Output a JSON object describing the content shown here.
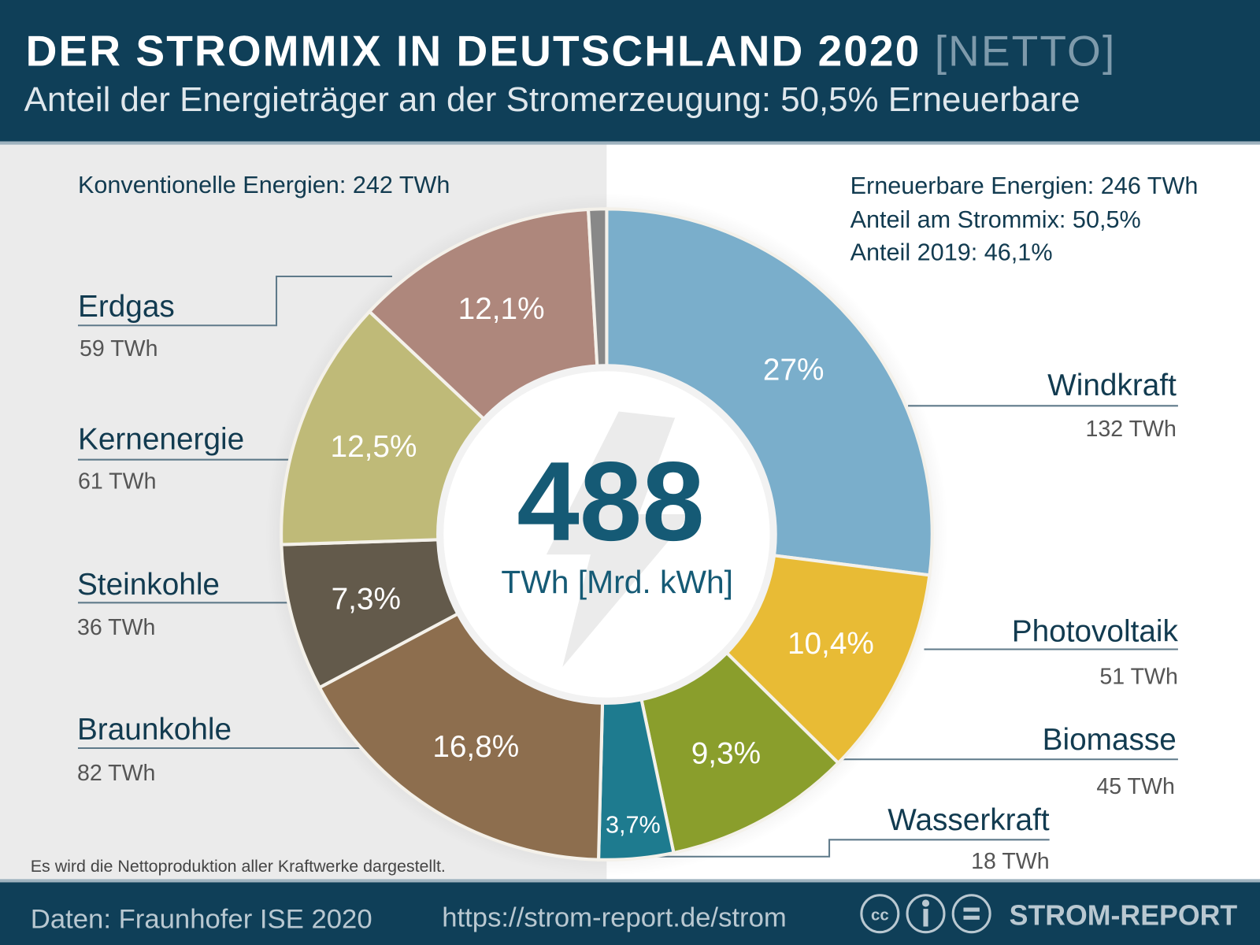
{
  "header": {
    "title": "DER STROMMIX IN DEUTSCHLAND 2020",
    "title_suffix": "[NETTO]",
    "subtitle": "Anteil der Energieträger an der Stromerzeugung: 50,5% Erneuerbare"
  },
  "summary": {
    "conventional": "Konventionelle Energien: 242 TWh",
    "renewable_lines": [
      "Erneuerbare Energien: 246 TWh",
      "Anteil am Strommix: 50,5%",
      "Anteil 2019: 46,1%"
    ]
  },
  "center": {
    "value": "488",
    "unit": "TWh [Mrd. kWh]"
  },
  "note": "Es wird die Nettoproduktion aller Kraftwerke dargestellt.",
  "footer": {
    "source": "Daten: Fraunhofer ISE 2020",
    "url": "https://strom-report.de/strom",
    "license_icons": [
      "cc-icon",
      "attribution-icon",
      "no-derivatives-icon"
    ],
    "brand": "STROM-REPORT"
  },
  "colors": {
    "header": "#0f3f58",
    "accent": "#155a75",
    "left_bg": "#ebebeb",
    "right_bg": "#ffffff"
  },
  "chart_data": {
    "type": "pie",
    "subtype": "donut",
    "title": "DER STROMMIX IN DEUTSCHLAND 2020 [NETTO]",
    "total": 488,
    "unit": "TWh",
    "slices": [
      {
        "name": "Windkraft",
        "percent": 27.0,
        "label": "27%",
        "twh": "132 TWh",
        "color": "#7aaecb"
      },
      {
        "name": "Photovoltaik",
        "percent": 10.4,
        "label": "10,4%",
        "twh": "51 TWh",
        "color": "#e8bb35"
      },
      {
        "name": "Biomasse",
        "percent": 9.3,
        "label": "9,3%",
        "twh": "45 TWh",
        "color": "#8a9e2c"
      },
      {
        "name": "Wasserkraft",
        "percent": 3.7,
        "label": "3,7%",
        "twh": "18 TWh",
        "color": "#1e7b8f"
      },
      {
        "name": "Braunkohle",
        "percent": 16.8,
        "label": "16,8%",
        "twh": "82 TWh",
        "color": "#8d6e4e"
      },
      {
        "name": "Steinkohle",
        "percent": 7.3,
        "label": "7,3%",
        "twh": "36 TWh",
        "color": "#635a4b"
      },
      {
        "name": "Kernenergie",
        "percent": 12.5,
        "label": "12,5%",
        "twh": "61 TWh",
        "color": "#bfba78"
      },
      {
        "name": "Erdgas",
        "percent": 12.1,
        "label": "12,1%",
        "twh": "59 TWh",
        "color": "#ae877c"
      },
      {
        "name": "",
        "percent": 0.9,
        "label": "",
        "twh": "",
        "color": "#888888"
      }
    ]
  }
}
